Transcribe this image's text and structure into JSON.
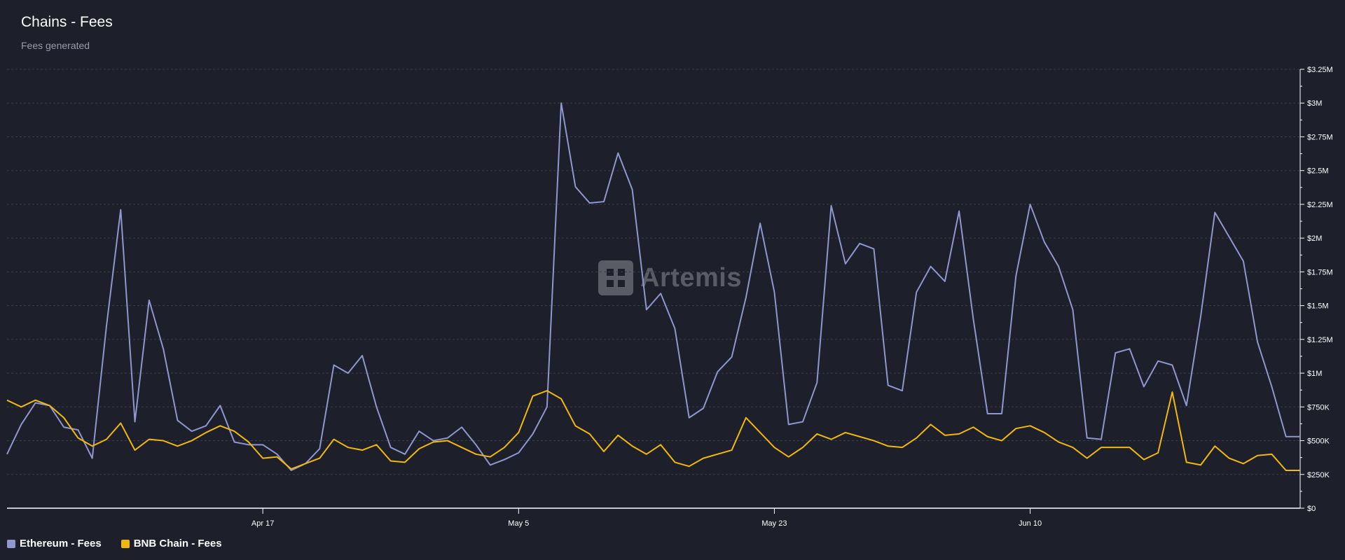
{
  "header": {
    "title": "Chains - Fees",
    "subtitle": "Fees generated"
  },
  "watermark": {
    "text": "Artemis"
  },
  "colors": {
    "background": "#1d1f2b",
    "ethereum": "#8e97cf",
    "bnb": "#f0b90b",
    "grid": "#3b3e4d",
    "axis": "#ffffff"
  },
  "chart_data": {
    "type": "line",
    "title": "Chains - Fees",
    "subtitle": "Fees generated",
    "x_tick_labels": [
      "Apr 17",
      "May 5",
      "May 23",
      "Jun 10"
    ],
    "x_tick_indices": [
      18,
      36,
      54,
      72
    ],
    "y_ticks": [
      0,
      250000,
      500000,
      750000,
      1000000,
      1250000,
      1500000,
      1750000,
      2000000,
      2250000,
      2500000,
      2750000,
      3000000,
      3250000
    ],
    "y_tick_labels": [
      "$0",
      "$250K",
      "$500K",
      "$750K",
      "$1M",
      "$1.25M",
      "$1.5M",
      "$1.75M",
      "$2M",
      "$2.25M",
      "$2.5M",
      "$2.75M",
      "$3M",
      "$3.25M"
    ],
    "ylim": [
      0,
      3250000
    ],
    "y_axis_position": "right",
    "grid": true,
    "legend_position": "bottom-left",
    "series": [
      {
        "name": "Ethereum - Fees",
        "color": "#8e97cf",
        "values": [
          400000,
          620000,
          780000,
          760000,
          600000,
          580000,
          370000,
          1350000,
          2210000,
          640000,
          1540000,
          1180000,
          650000,
          570000,
          610000,
          760000,
          490000,
          470000,
          470000,
          400000,
          280000,
          330000,
          440000,
          1060000,
          1000000,
          1130000,
          750000,
          450000,
          400000,
          570000,
          500000,
          520000,
          600000,
          470000,
          320000,
          360000,
          410000,
          550000,
          750000,
          3000000,
          2380000,
          2260000,
          2270000,
          2630000,
          2360000,
          1470000,
          1590000,
          1330000,
          670000,
          740000,
          1010000,
          1120000,
          1560000,
          2110000,
          1600000,
          620000,
          640000,
          930000,
          2240000,
          1810000,
          1960000,
          1920000,
          910000,
          870000,
          1600000,
          1790000,
          1680000,
          2200000,
          1400000,
          700000,
          700000,
          1720000,
          2250000,
          1970000,
          1790000,
          1470000,
          520000,
          510000,
          1150000,
          1180000,
          900000,
          1090000,
          1060000,
          760000,
          1420000,
          2190000,
          2010000,
          1830000,
          1230000,
          900000,
          530000,
          530000
        ],
        "date_labels_in_tooltip": false
      },
      {
        "name": "BNB Chain - Fees",
        "color": "#f0b90b",
        "values": [
          800000,
          750000,
          800000,
          760000,
          670000,
          520000,
          460000,
          510000,
          630000,
          430000,
          510000,
          500000,
          460000,
          500000,
          560000,
          610000,
          570000,
          490000,
          370000,
          380000,
          290000,
          330000,
          370000,
          510000,
          450000,
          430000,
          470000,
          350000,
          340000,
          440000,
          490000,
          500000,
          450000,
          400000,
          380000,
          450000,
          560000,
          830000,
          870000,
          810000,
          610000,
          550000,
          420000,
          540000,
          460000,
          400000,
          470000,
          340000,
          310000,
          370000,
          400000,
          430000,
          670000,
          560000,
          450000,
          380000,
          450000,
          550000,
          510000,
          560000,
          530000,
          500000,
          460000,
          450000,
          520000,
          620000,
          540000,
          550000,
          600000,
          530000,
          500000,
          590000,
          610000,
          560000,
          490000,
          450000,
          370000,
          450000,
          450000,
          450000,
          360000,
          410000,
          860000,
          340000,
          320000,
          460000,
          370000,
          330000,
          390000,
          400000,
          280000,
          280000
        ]
      }
    ]
  }
}
